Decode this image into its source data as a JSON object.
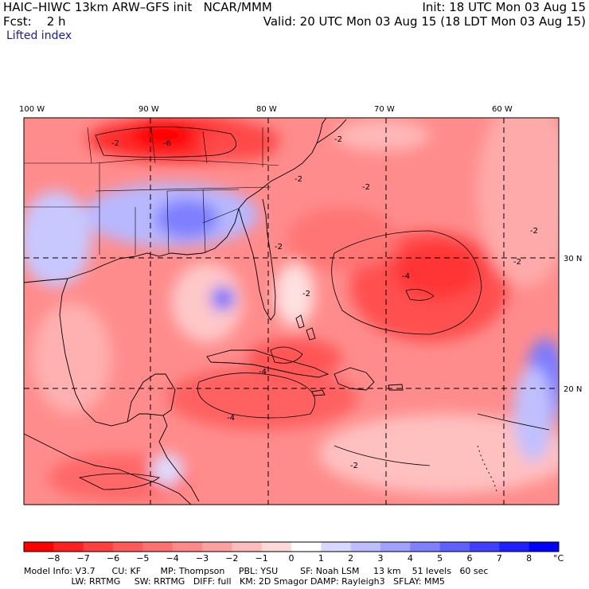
{
  "header": {
    "title": "HAIC–HIWC 13km ARW–GFS init   NCAR/MMM",
    "forecast": "Fcst:    2 h",
    "field": "Lifted index",
    "init": "Init: 18 UTC Mon 03 Aug 15",
    "valid": "Valid: 20 UTC Mon 03 Aug 15 (18 LDT Mon 03 Aug 15)"
  },
  "map": {
    "lon_labels": [
      "100 W",
      "90 W",
      "80 W",
      "70 W",
      "60 W"
    ],
    "lat_labels": [
      "30 N",
      "20 N"
    ],
    "contour_labels": [
      "-2",
      "-2",
      "-2",
      "-2",
      "-2",
      "-2",
      "-2",
      "-2",
      "-2",
      "-4",
      "-4",
      "-4",
      "-6"
    ]
  },
  "colorbar": {
    "unit": "°C",
    "labels": [
      "−8",
      "−7",
      "−6",
      "−5",
      "−4",
      "−3",
      "−2",
      "−1",
      "0",
      "1",
      "2",
      "3",
      "4",
      "5",
      "6",
      "7",
      "8"
    ],
    "colors": [
      "#ff0000",
      "#ff2020",
      "#ff4040",
      "#ff5a5a",
      "#ff7070",
      "#ff8888",
      "#ffa0a0",
      "#ffbcbc",
      "#ffd8d8",
      "#ffffff",
      "#d8d8ff",
      "#bcbcff",
      "#a0a0ff",
      "#8080ff",
      "#6060ff",
      "#4040ff",
      "#2020ff",
      "#0000ff"
    ]
  },
  "footer": {
    "line1": "Model Info: V3.7      CU: KF       MP: Thompson     PBL: YSU        SF: Noah LSM     13 km    51 levels   60 sec",
    "line2": "                 LW: RRTMG     SW: RRTMG   DIFF: full   KM: 2D Smagor DAMP: Rayleigh3   SFLAY: MM5"
  }
}
